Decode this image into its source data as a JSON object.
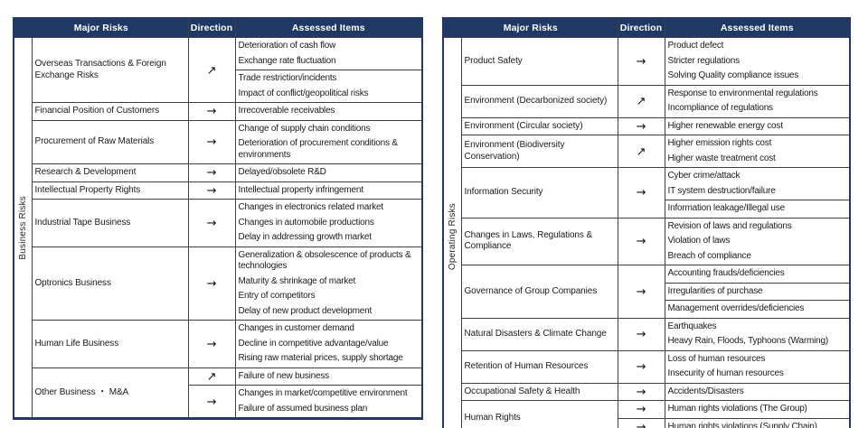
{
  "colors": {
    "header_bg": "#1f3864",
    "header_text": "#ffffff",
    "outer_border": "#1f3864",
    "inner_border": "#404040",
    "body_text": "#1a1a1a"
  },
  "direction_glyphs": {
    "up": "↗",
    "flat": "→"
  },
  "tables": [
    {
      "id": "business-risks",
      "side_label": "Business Risks",
      "headers": {
        "major_risks": "Major Risks",
        "direction": "Direction",
        "assessed_items": "Assessed Items"
      },
      "rows": [
        {
          "risk": "Overseas Transactions & Foreign Exchange Risks",
          "groups": [
            {
              "direction": "up",
              "cells": [
                [
                  "Deterioration of cash flow",
                  "Exchange rate fluctuation"
                ],
                [
                  "Trade restriction/incidents",
                  "Impact of conflict/geopolitical risks"
                ]
              ]
            }
          ]
        },
        {
          "risk": "Financial Position of Customers",
          "groups": [
            {
              "direction": "flat",
              "cells": [
                [
                  "Irrecoverable receivables"
                ]
              ]
            }
          ]
        },
        {
          "risk": "Procurement of Raw Materials",
          "groups": [
            {
              "direction": "flat",
              "cells": [
                [
                  "Change of supply chain conditions",
                  "Deterioration of procurement conditions & environments"
                ]
              ]
            }
          ]
        },
        {
          "risk": "Research & Development",
          "groups": [
            {
              "direction": "flat",
              "cells": [
                [
                  "Delayed/obsolete R&D"
                ]
              ]
            }
          ]
        },
        {
          "risk": "Intellectual Property Rights",
          "groups": [
            {
              "direction": "flat",
              "cells": [
                [
                  "Intellectual property infringement"
                ]
              ]
            }
          ]
        },
        {
          "risk": "Industrial Tape Business",
          "groups": [
            {
              "direction": "flat",
              "cells": [
                [
                  "Changes in electronics related market",
                  "Changes in automobile productions",
                  "Delay in addressing growth market"
                ]
              ]
            }
          ]
        },
        {
          "risk": "Optronics Business",
          "groups": [
            {
              "direction": "flat",
              "cells": [
                [
                  "Generalization & obsolescence of products & technologies",
                  "Maturity & shrinkage of market",
                  "Entry of competitors",
                  "Delay of new product development"
                ]
              ]
            }
          ]
        },
        {
          "risk": "Human Life Business",
          "groups": [
            {
              "direction": "flat",
              "cells": [
                [
                  "Changes in customer demand",
                  "Decline in competitive advantage/value",
                  "Rising raw material prices, supply shortage"
                ]
              ]
            }
          ]
        },
        {
          "risk": "Other Business ・ M&A",
          "groups": [
            {
              "direction": "up",
              "cells": [
                [
                  "Failure of new business"
                ]
              ]
            },
            {
              "direction": "flat",
              "cells": [
                [
                  "Changes in market/competitive environment",
                  "Failure of assumed business plan"
                ]
              ]
            }
          ]
        }
      ]
    },
    {
      "id": "operating-risks",
      "side_label": "Operating Risks",
      "headers": {
        "major_risks": "Major Risks",
        "direction": "Direction",
        "assessed_items": "Assessed Items"
      },
      "rows": [
        {
          "risk": "Product Safety",
          "groups": [
            {
              "direction": "flat",
              "cells": [
                [
                  "Product defect",
                  "Stricter regulations",
                  "Solving Quality compliance issues"
                ]
              ]
            }
          ]
        },
        {
          "risk": "Environment (Decarbonized society)",
          "groups": [
            {
              "direction": "up",
              "cells": [
                [
                  "Response to environmental regulations",
                  "Incompliance of regulations"
                ]
              ]
            }
          ]
        },
        {
          "risk": "Environment (Circular society)",
          "groups": [
            {
              "direction": "flat",
              "cells": [
                [
                  "Higher renewable energy cost"
                ]
              ]
            }
          ]
        },
        {
          "risk": "Environment (Biodiversity Conservation)",
          "groups": [
            {
              "direction": "up",
              "cells": [
                [
                  "Higher emission rights cost",
                  "Higher waste treatment cost"
                ]
              ]
            }
          ]
        },
        {
          "risk": "Information Security",
          "groups": [
            {
              "direction": "flat",
              "cells": [
                [
                  "Cyber crime/attack",
                  "IT system destruction/failure"
                ],
                [
                  "Information leakage/Illegal use"
                ]
              ]
            }
          ]
        },
        {
          "risk": "Changes in Laws, Regulations & Compliance",
          "groups": [
            {
              "direction": "flat",
              "cells": [
                [
                  "Revision of laws and regulations",
                  "Violation of laws",
                  "Breach of compliance"
                ]
              ]
            }
          ]
        },
        {
          "risk": "Governance of Group Companies",
          "groups": [
            {
              "direction": "flat",
              "cells": [
                [
                  "Accounting frauds/deficiencies"
                ],
                [
                  "Irregularities of purchase"
                ],
                [
                  "Management overrides/deficiencies"
                ]
              ]
            }
          ]
        },
        {
          "risk": "Natural Disasters & Climate Change",
          "groups": [
            {
              "direction": "flat",
              "cells": [
                [
                  "Earthquakes",
                  "Heavy Rain, Floods, Typhoons (Warming)"
                ]
              ]
            }
          ]
        },
        {
          "risk": "Retention of Human Resources",
          "groups": [
            {
              "direction": "flat",
              "cells": [
                [
                  "Loss of human resources",
                  "Insecurity of human resources"
                ]
              ]
            }
          ]
        },
        {
          "risk": "Occupational Safety & Health",
          "groups": [
            {
              "direction": "flat",
              "cells": [
                [
                  "Accidents/Disasters"
                ]
              ]
            }
          ]
        },
        {
          "risk": "Human Rights",
          "groups": [
            {
              "direction": "flat",
              "cells": [
                [
                  "Human rights violations (The Group)"
                ]
              ]
            },
            {
              "direction": "flat",
              "cells": [
                [
                  "Human rights violations (Supply Chain)"
                ]
              ]
            }
          ]
        }
      ]
    }
  ]
}
